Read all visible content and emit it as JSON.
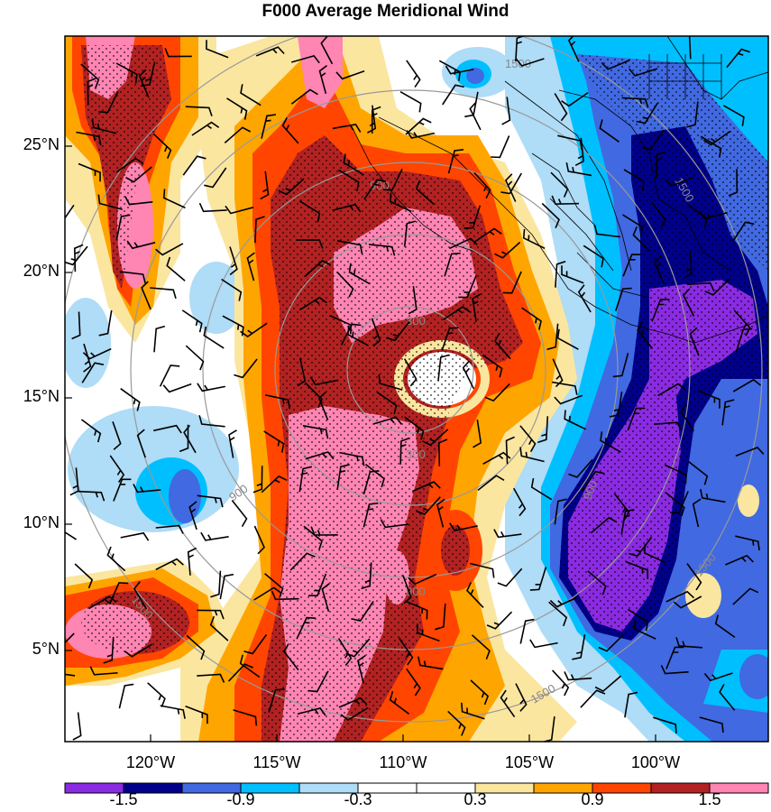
{
  "title": "F000 Average Meridional Wind",
  "lat_labels": [
    "25°N",
    "20°N",
    "15°N",
    "10°N",
    "5°N"
  ],
  "lon_labels": [
    "120°W",
    "115°W",
    "110°W",
    "105°W",
    "100°W"
  ],
  "colorbar": {
    "colors": [
      "#8a2be2",
      "#00008b",
      "#4169e1",
      "#00bfff",
      "#afdcf6",
      "#ffffff",
      "#ffffff",
      "#fbe6a0",
      "#ffa500",
      "#ff4500",
      "#b22222",
      "#ff85b3"
    ],
    "labels": [
      "-1.5",
      "-0.9",
      "-0.3",
      "0.3",
      "0.9",
      "1.5"
    ]
  },
  "range_ring_labels": [
    "300",
    "900",
    "1500"
  ],
  "colors": {
    "range_rings": "#999999",
    "coast": "#000000",
    "barbs": "#000000"
  }
}
